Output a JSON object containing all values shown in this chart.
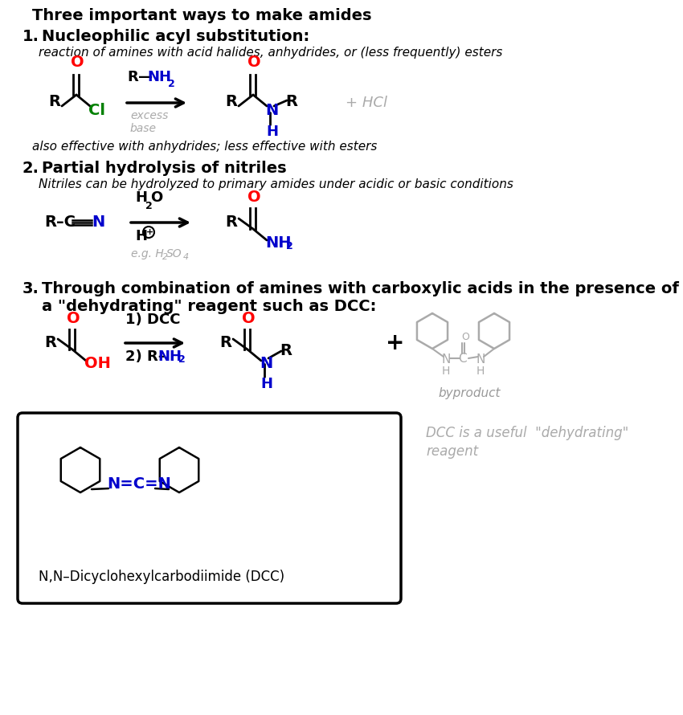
{
  "title": "Three important ways to make amides",
  "bg_color": "#ffffff",
  "red": "#ff0000",
  "green": "#008000",
  "blue": "#0000cc",
  "gray": "#aaaaaa",
  "dark_gray": "#999999",
  "black": "#000000",
  "s1_heading": "1. Nucleophilic acyl substitution:",
  "s1_desc": "    reaction of amines with acid halides, anhydrides, or (less frequently) esters",
  "s1_note": "   also effective with anhydrides; less effective with esters",
  "s2_heading": "2. Partial hydrolysis of nitriles",
  "s2_desc": "    Nitriles can be hydrolyzed to primary amides under acidic or basic conditions",
  "s3_heading1": "3. Through combination of amines with carboxylic acids in the presence of",
  "s3_heading2": "    a \"dehydrating\" reagent such as DCC:",
  "dcc_label": "N,N–Dicyclohexylcarbodiimide (DCC)",
  "dcc_note1": "DCC is a useful  \"dehydrating\"",
  "dcc_note2": "reagent",
  "byproduct": "byproduct"
}
